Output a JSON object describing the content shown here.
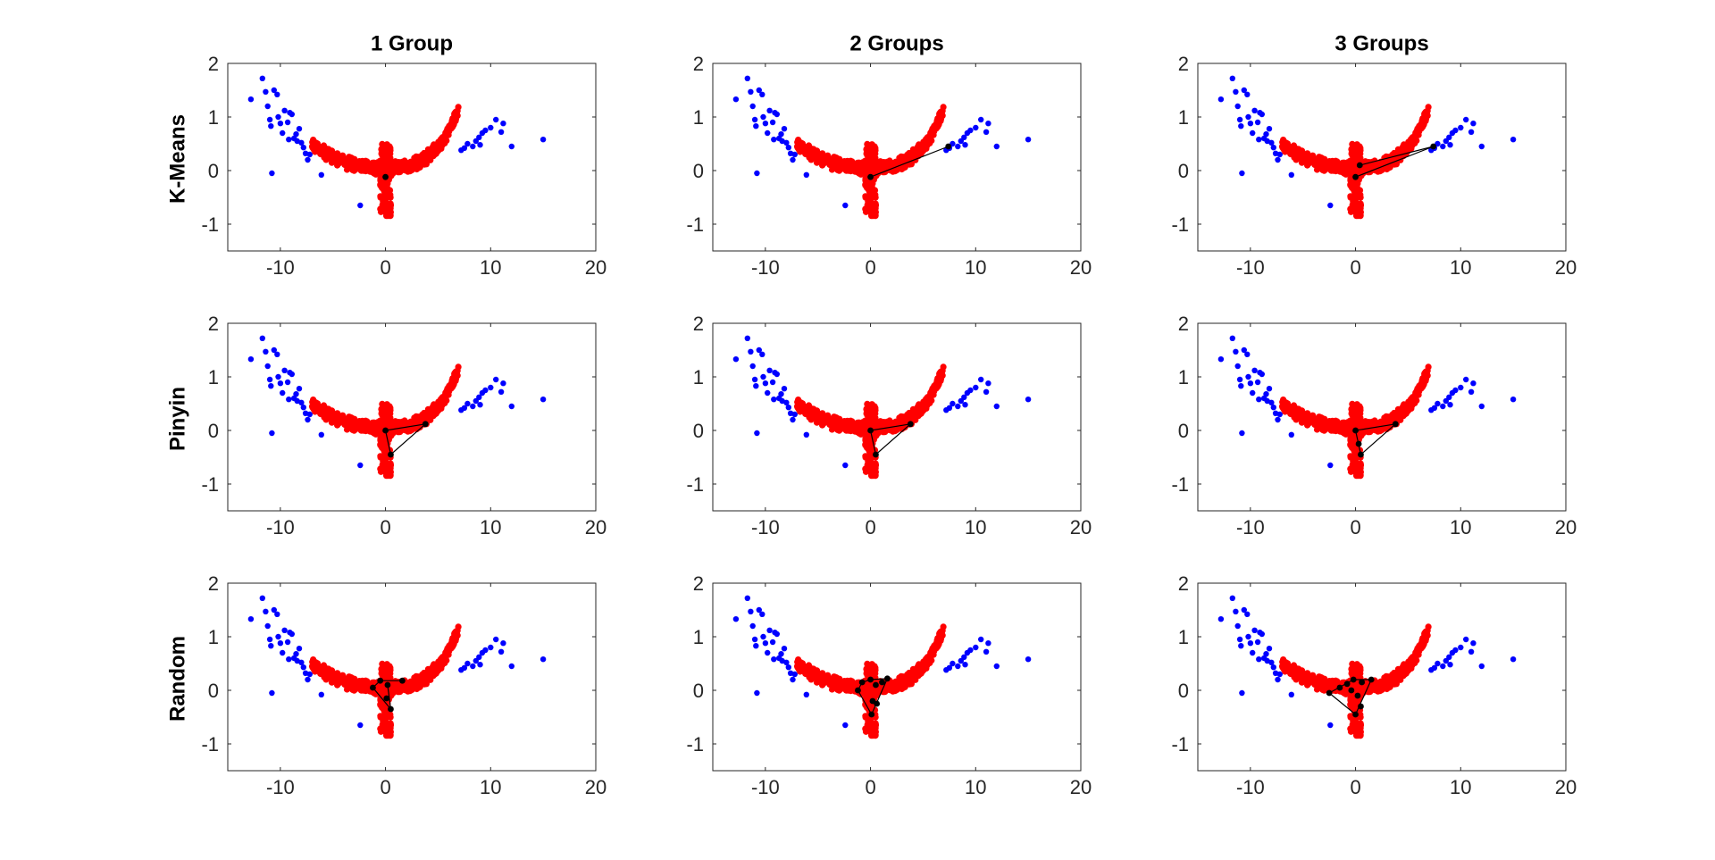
{
  "figure": {
    "column_titles": [
      "1 Group",
      "2 Groups",
      "3 Groups"
    ],
    "row_labels": [
      "K-Means",
      "Pinyin",
      "Random"
    ]
  },
  "colors": {
    "blue_points": "#0000ff",
    "red_points": "#ff0000",
    "overlay": "#000000",
    "axes": "#262626"
  },
  "chart_data": {
    "type": "scatter",
    "layout": "3x3 grid of scatter plots",
    "xlim": [
      -15,
      20
    ],
    "ylim": [
      -1.5,
      2
    ],
    "xticks": [
      -10,
      0,
      10,
      20
    ],
    "yticks": [
      -1,
      0,
      1,
      2
    ],
    "blue_points": [
      [
        -12.8,
        1.33
      ],
      [
        -11.7,
        1.72
      ],
      [
        -11.4,
        1.47
      ],
      [
        -11.2,
        1.2
      ],
      [
        -11.0,
        0.95
      ],
      [
        -10.9,
        0.83
      ],
      [
        -10.6,
        1.5
      ],
      [
        -10.3,
        1.42
      ],
      [
        -10.2,
        1.0
      ],
      [
        -10.0,
        0.88
      ],
      [
        -9.8,
        0.7
      ],
      [
        -9.6,
        1.12
      ],
      [
        -9.3,
        0.9
      ],
      [
        -9.1,
        1.08
      ],
      [
        -8.9,
        1.05
      ],
      [
        -8.7,
        0.6
      ],
      [
        -8.4,
        0.55
      ],
      [
        -8.2,
        0.78
      ],
      [
        -8.0,
        0.52
      ],
      [
        -7.8,
        0.43
      ],
      [
        -7.6,
        0.32
      ],
      [
        -7.4,
        0.2
      ],
      [
        -7.2,
        0.3
      ],
      [
        -9.2,
        0.58
      ],
      [
        -8.5,
        0.68
      ],
      [
        -10.8,
        -0.05
      ],
      [
        -6.1,
        -0.08
      ],
      [
        -2.4,
        -0.65
      ],
      [
        7.2,
        0.38
      ],
      [
        7.5,
        0.42
      ],
      [
        7.8,
        0.5
      ],
      [
        8.3,
        0.45
      ],
      [
        8.6,
        0.55
      ],
      [
        8.9,
        0.62
      ],
      [
        9.2,
        0.7
      ],
      [
        9.5,
        0.75
      ],
      [
        9.0,
        0.48
      ],
      [
        10.0,
        0.8
      ],
      [
        10.5,
        0.95
      ],
      [
        11.0,
        0.72
      ],
      [
        11.2,
        0.88
      ],
      [
        12.0,
        0.45
      ],
      [
        15.0,
        0.58
      ]
    ],
    "red_band": {
      "x_range": [
        -7,
        7
      ],
      "stem": {
        "x_range": [
          -0.5,
          0.5
        ],
        "y_range": [
          -0.85,
          0.5
        ]
      }
    },
    "panels": [
      {
        "row": 0,
        "col": 0,
        "centers": [
          [
            0,
            -0.12
          ]
        ],
        "links": []
      },
      {
        "row": 0,
        "col": 1,
        "centers": [
          [
            0,
            -0.12
          ],
          [
            7.4,
            0.45
          ]
        ],
        "links": [
          [
            0,
            1
          ]
        ]
      },
      {
        "row": 0,
        "col": 2,
        "centers": [
          [
            0,
            -0.12
          ],
          [
            0.4,
            0.1
          ],
          [
            7.4,
            0.45
          ]
        ],
        "links": [
          [
            0,
            2
          ],
          [
            1,
            2
          ]
        ]
      },
      {
        "row": 1,
        "col": 0,
        "centers": [
          [
            0,
            0
          ],
          [
            3.8,
            0.12
          ],
          [
            0.5,
            -0.45
          ]
        ],
        "links": [
          [
            0,
            1
          ],
          [
            0,
            2
          ],
          [
            1,
            2
          ]
        ]
      },
      {
        "row": 1,
        "col": 1,
        "centers": [
          [
            0,
            0
          ],
          [
            3.8,
            0.12
          ],
          [
            0.5,
            -0.45
          ]
        ],
        "links": [
          [
            0,
            1
          ],
          [
            0,
            2
          ],
          [
            1,
            2
          ]
        ]
      },
      {
        "row": 1,
        "col": 2,
        "centers": [
          [
            0,
            0
          ],
          [
            3.8,
            0.12
          ],
          [
            0.5,
            -0.45
          ],
          [
            0.3,
            -0.25
          ]
        ],
        "links": [
          [
            0,
            1
          ],
          [
            0,
            2
          ],
          [
            1,
            2
          ]
        ]
      },
      {
        "row": 2,
        "col": 0,
        "centers": [
          [
            -1.2,
            0.05
          ],
          [
            -0.5,
            0.18
          ],
          [
            0.2,
            0.1
          ],
          [
            0.1,
            -0.15
          ],
          [
            0.5,
            -0.35
          ],
          [
            1.6,
            0.18
          ]
        ],
        "links": [
          [
            0,
            1
          ],
          [
            1,
            5
          ],
          [
            0,
            4
          ],
          [
            2,
            4
          ]
        ]
      },
      {
        "row": 2,
        "col": 1,
        "centers": [
          [
            -1.2,
            0.0
          ],
          [
            -0.8,
            0.15
          ],
          [
            0.0,
            0.2
          ],
          [
            0.5,
            0.1
          ],
          [
            1.1,
            0.15
          ],
          [
            1.6,
            0.22
          ],
          [
            0.2,
            -0.2
          ],
          [
            0.1,
            -0.45
          ],
          [
            0.6,
            -0.25
          ]
        ],
        "links": [
          [
            0,
            1
          ],
          [
            1,
            2
          ],
          [
            2,
            5
          ],
          [
            0,
            7
          ],
          [
            5,
            7
          ]
        ]
      },
      {
        "row": 2,
        "col": 2,
        "centers": [
          [
            -2.5,
            -0.05
          ],
          [
            -1.5,
            0.05
          ],
          [
            -0.8,
            0.12
          ],
          [
            -0.2,
            0.2
          ],
          [
            0.6,
            0.15
          ],
          [
            1.5,
            0.2
          ],
          [
            0.2,
            -0.1
          ],
          [
            0.0,
            -0.45
          ],
          [
            0.5,
            -0.3
          ],
          [
            -0.4,
            0.0
          ]
        ],
        "links": [
          [
            0,
            3
          ],
          [
            3,
            5
          ],
          [
            0,
            7
          ],
          [
            5,
            7
          ]
        ]
      }
    ]
  }
}
